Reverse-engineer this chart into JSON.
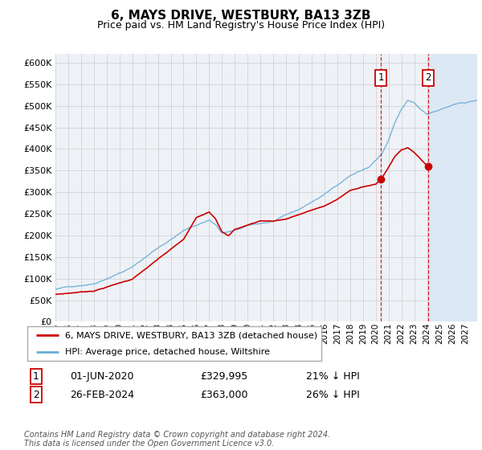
{
  "title": "6, MAYS DRIVE, WESTBURY, BA13 3ZB",
  "subtitle": "Price paid vs. HM Land Registry's House Price Index (HPI)",
  "ylim": [
    0,
    620000
  ],
  "yticks": [
    0,
    50000,
    100000,
    150000,
    200000,
    250000,
    300000,
    350000,
    400000,
    450000,
    500000,
    550000,
    600000
  ],
  "hpi_color": "#6baed6",
  "price_color": "#cc0000",
  "legend_line1": "6, MAYS DRIVE, WESTBURY, BA13 3ZB (detached house)",
  "legend_line2": "HPI: Average price, detached house, Wiltshire",
  "footnote": "Contains HM Land Registry data © Crown copyright and database right 2024.\nThis data is licensed under the Open Government Licence v3.0.",
  "background_color": "#ffffff",
  "chart_bg": "#eef2f7",
  "grid_color": "#cccccc",
  "sale1_date": "01-JUN-2020",
  "sale1_price": "£329,995",
  "sale1_hpi": "21% ↓ HPI",
  "sale2_date": "26-FEB-2024",
  "sale2_price": "£363,000",
  "sale2_hpi": "26% ↓ HPI"
}
